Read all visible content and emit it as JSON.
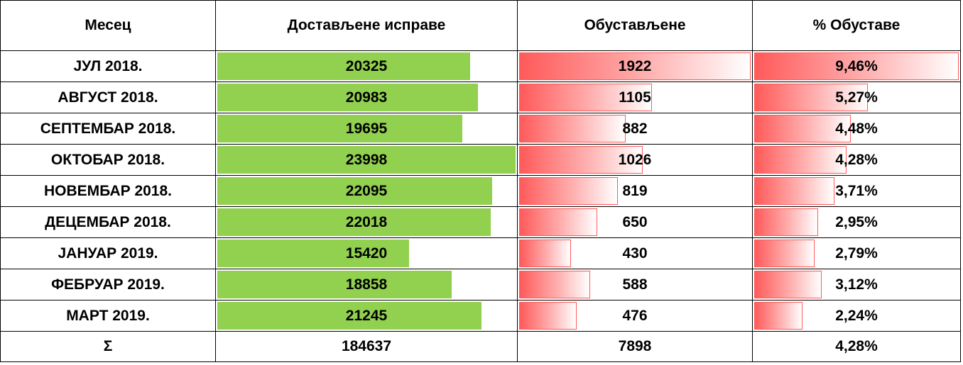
{
  "headers": {
    "month": "Месец",
    "delivered": "Достављене исправе",
    "suspended": "Обустављене",
    "percent": "% Обуставе"
  },
  "rows": [
    {
      "month": "ЈУЛ 2018.",
      "delivered": "20325",
      "suspended": "1922",
      "percent": "9,46%"
    },
    {
      "month": "АВГУСТ 2018.",
      "delivered": "20983",
      "suspended": "1105",
      "percent": "5,27%"
    },
    {
      "month": "СЕПТЕМБАР 2018.",
      "delivered": "19695",
      "suspended": "882",
      "percent": "4,48%"
    },
    {
      "month": "ОКТОБАР 2018.",
      "delivered": "23998",
      "suspended": "1026",
      "percent": "4,28%"
    },
    {
      "month": "НОВЕМБАР 2018.",
      "delivered": "22095",
      "suspended": "819",
      "percent": "3,71%"
    },
    {
      "month": "ДЕЦЕМБАР 2018.",
      "delivered": "22018",
      "suspended": "650",
      "percent": "2,95%"
    },
    {
      "month": "ЈАНУАР 2019.",
      "delivered": "15420",
      "suspended": "430",
      "percent": "2,79%"
    },
    {
      "month": "ФЕБРУАР 2019.",
      "delivered": "18858",
      "suspended": "588",
      "percent": "3,12%"
    },
    {
      "month": "МАРТ 2019.",
      "delivered": "21245",
      "suspended": "476",
      "percent": "2,24%"
    }
  ],
  "sum": {
    "label": "Σ",
    "delivered": "184637",
    "suspended": "7898",
    "percent": "4,28%"
  },
  "colors": {
    "green_bar": "#92d050",
    "red_bar": "#ff5a5a"
  },
  "chart_data": {
    "type": "table",
    "columns": [
      "Месец",
      "Достављене исправе",
      "Обустављене",
      "% Обуставе"
    ],
    "categories": [
      "ЈУЛ 2018.",
      "АВГУСТ 2018.",
      "СЕПТЕМБАР 2018.",
      "ОКТОБАР 2018.",
      "НОВЕМБАР 2018.",
      "ДЕЦЕМБАР 2018.",
      "ЈАНУАР 2019.",
      "ФЕБРУАР 2019.",
      "МАРТ 2019."
    ],
    "series": [
      {
        "name": "Достављене исправе",
        "values": [
          20325,
          20983,
          19695,
          23998,
          22095,
          22018,
          15420,
          18858,
          21245
        ]
      },
      {
        "name": "Обустављене",
        "values": [
          1922,
          1105,
          882,
          1026,
          819,
          650,
          430,
          588,
          476
        ]
      },
      {
        "name": "% Обуставе",
        "values": [
          9.46,
          5.27,
          4.48,
          4.28,
          3.71,
          2.95,
          2.79,
          3.12,
          2.24
        ]
      }
    ],
    "totals": {
      "Достављене исправе": 184637,
      "Обустављене": 7898,
      "% Обуставе": 4.28
    }
  }
}
